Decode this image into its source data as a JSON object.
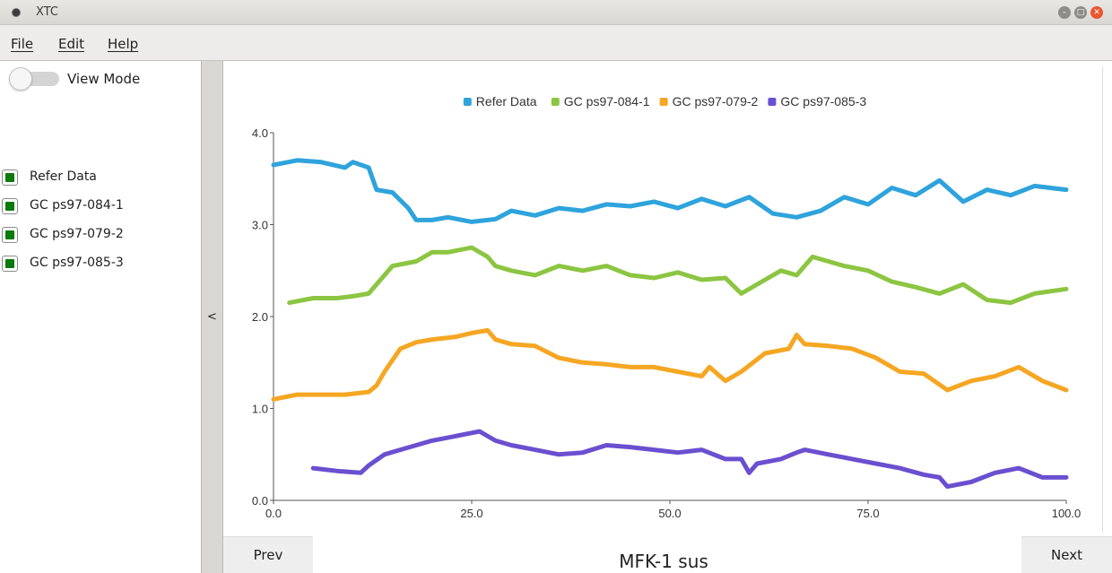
{
  "window": {
    "title": "XTC"
  },
  "menu": [
    {
      "label": "File"
    },
    {
      "label": "Edit"
    },
    {
      "label": "Help"
    }
  ],
  "sidebar": {
    "toggle_label": "View Mode",
    "toggle_on": false,
    "series": [
      {
        "label": "Refer Data",
        "checked": true
      },
      {
        "label": "GC ps97-084-1",
        "checked": true
      },
      {
        "label": "GC ps97-079-2",
        "checked": true
      },
      {
        "label": "GC ps97-085-3",
        "checked": true
      }
    ]
  },
  "collapse_label": "<",
  "nav": {
    "prev_label": "Prev",
    "next_label": "Next"
  },
  "footer_title": "MFK-1 sus",
  "colors": {
    "checkbox_fill": "#0a7a0a",
    "Refer Data": "#2ea3dc",
    "GC ps97-084-1": "#8cc542",
    "GC ps97-079-2": "#f5a623",
    "GC ps97-085-3": "#6a4fd0"
  },
  "chart_data": {
    "type": "line",
    "title": "",
    "xlabel": "",
    "ylabel": "",
    "xlim": [
      0,
      100
    ],
    "ylim": [
      0,
      4
    ],
    "x_ticks": [
      0,
      25,
      50,
      75,
      100
    ],
    "x_tick_labels": [
      "0.0",
      "25.0",
      "50.0",
      "75.0",
      "100.0"
    ],
    "y_ticks": [
      0,
      1,
      2,
      3,
      4
    ],
    "y_tick_labels": [
      "0.0",
      "1.0",
      "2.0",
      "3.0",
      "4.0"
    ],
    "grid": false,
    "legend": "top-center",
    "series": [
      {
        "name": "Refer Data",
        "color": "#2ea3dc",
        "x": [
          0,
          3,
          6,
          9,
          10,
          12,
          13,
          15,
          17,
          18,
          20,
          22,
          25,
          28,
          30,
          33,
          36,
          39,
          42,
          45,
          48,
          51,
          54,
          57,
          60,
          63,
          66,
          69,
          72,
          75,
          78,
          81,
          84,
          87,
          90,
          93,
          96,
          100
        ],
        "y": [
          3.65,
          3.7,
          3.68,
          3.62,
          3.68,
          3.62,
          3.38,
          3.35,
          3.18,
          3.05,
          3.05,
          3.08,
          3.03,
          3.06,
          3.15,
          3.1,
          3.18,
          3.15,
          3.22,
          3.2,
          3.25,
          3.18,
          3.28,
          3.2,
          3.3,
          3.12,
          3.08,
          3.15,
          3.3,
          3.22,
          3.4,
          3.32,
          3.48,
          3.25,
          3.38,
          3.32,
          3.42,
          3.38
        ]
      },
      {
        "name": "GC ps97-084-1",
        "color": "#8cc542",
        "x": [
          2,
          5,
          8,
          10,
          12,
          13,
          15,
          18,
          20,
          22,
          25,
          27,
          28,
          30,
          33,
          36,
          39,
          42,
          45,
          48,
          51,
          54,
          57,
          59,
          62,
          64,
          66,
          68,
          72,
          75,
          78,
          81,
          84,
          87,
          90,
          93,
          96,
          100
        ],
        "y": [
          2.15,
          2.2,
          2.2,
          2.22,
          2.25,
          2.35,
          2.55,
          2.6,
          2.7,
          2.7,
          2.75,
          2.65,
          2.55,
          2.5,
          2.45,
          2.55,
          2.5,
          2.55,
          2.45,
          2.42,
          2.48,
          2.4,
          2.42,
          2.25,
          2.4,
          2.5,
          2.45,
          2.65,
          2.55,
          2.5,
          2.38,
          2.32,
          2.25,
          2.35,
          2.18,
          2.15,
          2.25,
          2.3
        ]
      },
      {
        "name": "GC ps97-079-2",
        "color": "#f5a623",
        "x": [
          0,
          3,
          6,
          9,
          12,
          13,
          14,
          16,
          18,
          20,
          23,
          25,
          27,
          28,
          30,
          33,
          36,
          39,
          42,
          45,
          48,
          51,
          54,
          55,
          57,
          59,
          62,
          65,
          66,
          67,
          70,
          73,
          76,
          79,
          82,
          85,
          88,
          91,
          94,
          97,
          100
        ],
        "y": [
          1.1,
          1.15,
          1.15,
          1.15,
          1.18,
          1.25,
          1.4,
          1.65,
          1.72,
          1.75,
          1.78,
          1.82,
          1.85,
          1.75,
          1.7,
          1.68,
          1.55,
          1.5,
          1.48,
          1.45,
          1.45,
          1.4,
          1.35,
          1.45,
          1.3,
          1.4,
          1.6,
          1.65,
          1.8,
          1.7,
          1.68,
          1.65,
          1.55,
          1.4,
          1.38,
          1.2,
          1.3,
          1.35,
          1.45,
          1.3,
          1.2
        ]
      },
      {
        "name": "GC ps97-085-3",
        "color": "#6a4fd0",
        "x": [
          5,
          8,
          11,
          12,
          14,
          16,
          18,
          20,
          23,
          26,
          28,
          30,
          33,
          36,
          39,
          42,
          45,
          48,
          51,
          54,
          57,
          59,
          60,
          61,
          64,
          66,
          67,
          70,
          73,
          76,
          79,
          82,
          84,
          85,
          88,
          91,
          94,
          97,
          100
        ],
        "y": [
          0.35,
          0.32,
          0.3,
          0.38,
          0.5,
          0.55,
          0.6,
          0.65,
          0.7,
          0.75,
          0.65,
          0.6,
          0.55,
          0.5,
          0.52,
          0.6,
          0.58,
          0.55,
          0.52,
          0.55,
          0.45,
          0.45,
          0.3,
          0.4,
          0.45,
          0.52,
          0.55,
          0.5,
          0.45,
          0.4,
          0.35,
          0.28,
          0.25,
          0.15,
          0.2,
          0.3,
          0.35,
          0.25,
          0.25
        ]
      }
    ]
  }
}
